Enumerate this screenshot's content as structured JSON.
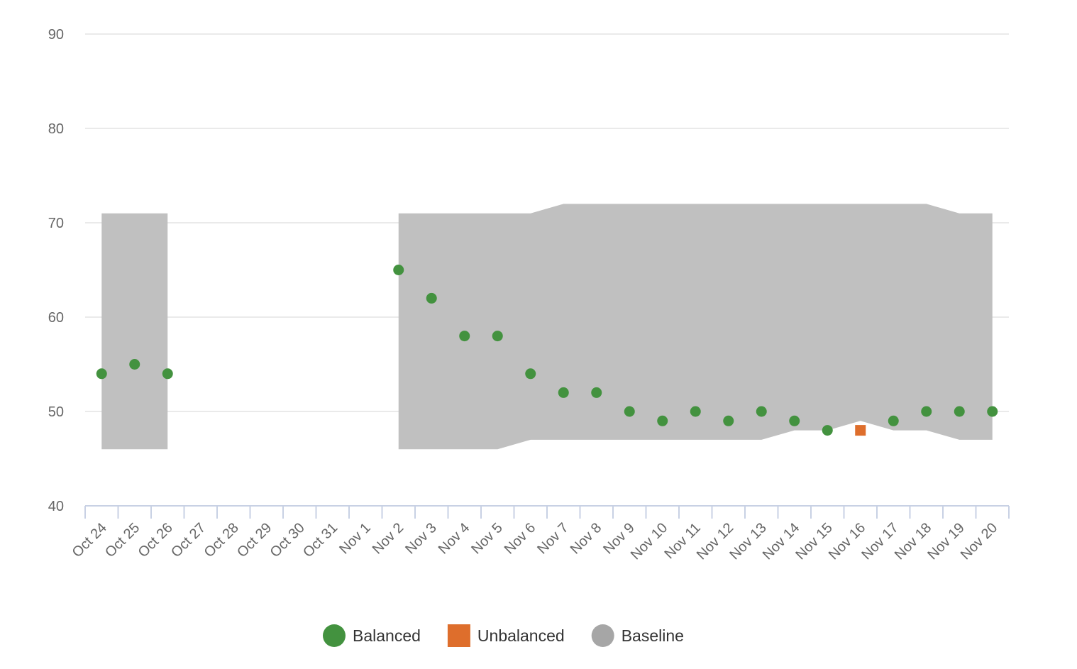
{
  "chart_data": {
    "type": "scatter",
    "title": "",
    "xlabel": "",
    "ylabel": "",
    "ylim": [
      40,
      90
    ],
    "y_ticks": [
      40,
      50,
      60,
      70,
      80,
      90
    ],
    "grid": true,
    "legend_position": "bottom",
    "categories": [
      "Oct 24",
      "Oct 25",
      "Oct 26",
      "Oct 27",
      "Oct 28",
      "Oct 29",
      "Oct 30",
      "Oct 31",
      "Nov 1",
      "Nov 2",
      "Nov 3",
      "Nov 4",
      "Nov 5",
      "Nov 6",
      "Nov 7",
      "Nov 8",
      "Nov 9",
      "Nov 10",
      "Nov 11",
      "Nov 12",
      "Nov 13",
      "Nov 14",
      "Nov 15",
      "Nov 16",
      "Nov 17",
      "Nov 18",
      "Nov 19",
      "Nov 20"
    ],
    "series": [
      {
        "name": "Balanced",
        "kind": "scatter",
        "marker": "circle",
        "color": "#43923f",
        "values": [
          54,
          55,
          54,
          null,
          null,
          null,
          null,
          null,
          null,
          65,
          62,
          58,
          58,
          54,
          52,
          52,
          50,
          49,
          50,
          49,
          50,
          49,
          48,
          null,
          49,
          50,
          50,
          50
        ]
      },
      {
        "name": "Unbalanced",
        "kind": "scatter",
        "marker": "square",
        "color": "#de6e2c",
        "values": [
          null,
          null,
          null,
          null,
          null,
          null,
          null,
          null,
          null,
          null,
          null,
          null,
          null,
          null,
          null,
          null,
          null,
          null,
          null,
          null,
          null,
          null,
          null,
          48,
          null,
          null,
          null,
          null
        ]
      },
      {
        "name": "Baseline",
        "kind": "range",
        "marker": "circle",
        "color": "#a6a6a6",
        "fill": "#c0c0c0",
        "low": [
          46,
          46,
          46,
          null,
          null,
          null,
          null,
          null,
          null,
          46,
          46,
          46,
          46,
          47,
          47,
          47,
          47,
          47,
          47,
          47,
          47,
          48,
          48,
          49,
          48,
          48,
          47,
          47
        ],
        "high": [
          71,
          71,
          71,
          null,
          null,
          null,
          null,
          null,
          null,
          71,
          71,
          71,
          71,
          71,
          72,
          72,
          72,
          72,
          72,
          72,
          72,
          72,
          72,
          72,
          72,
          72,
          71,
          71
        ]
      }
    ]
  }
}
